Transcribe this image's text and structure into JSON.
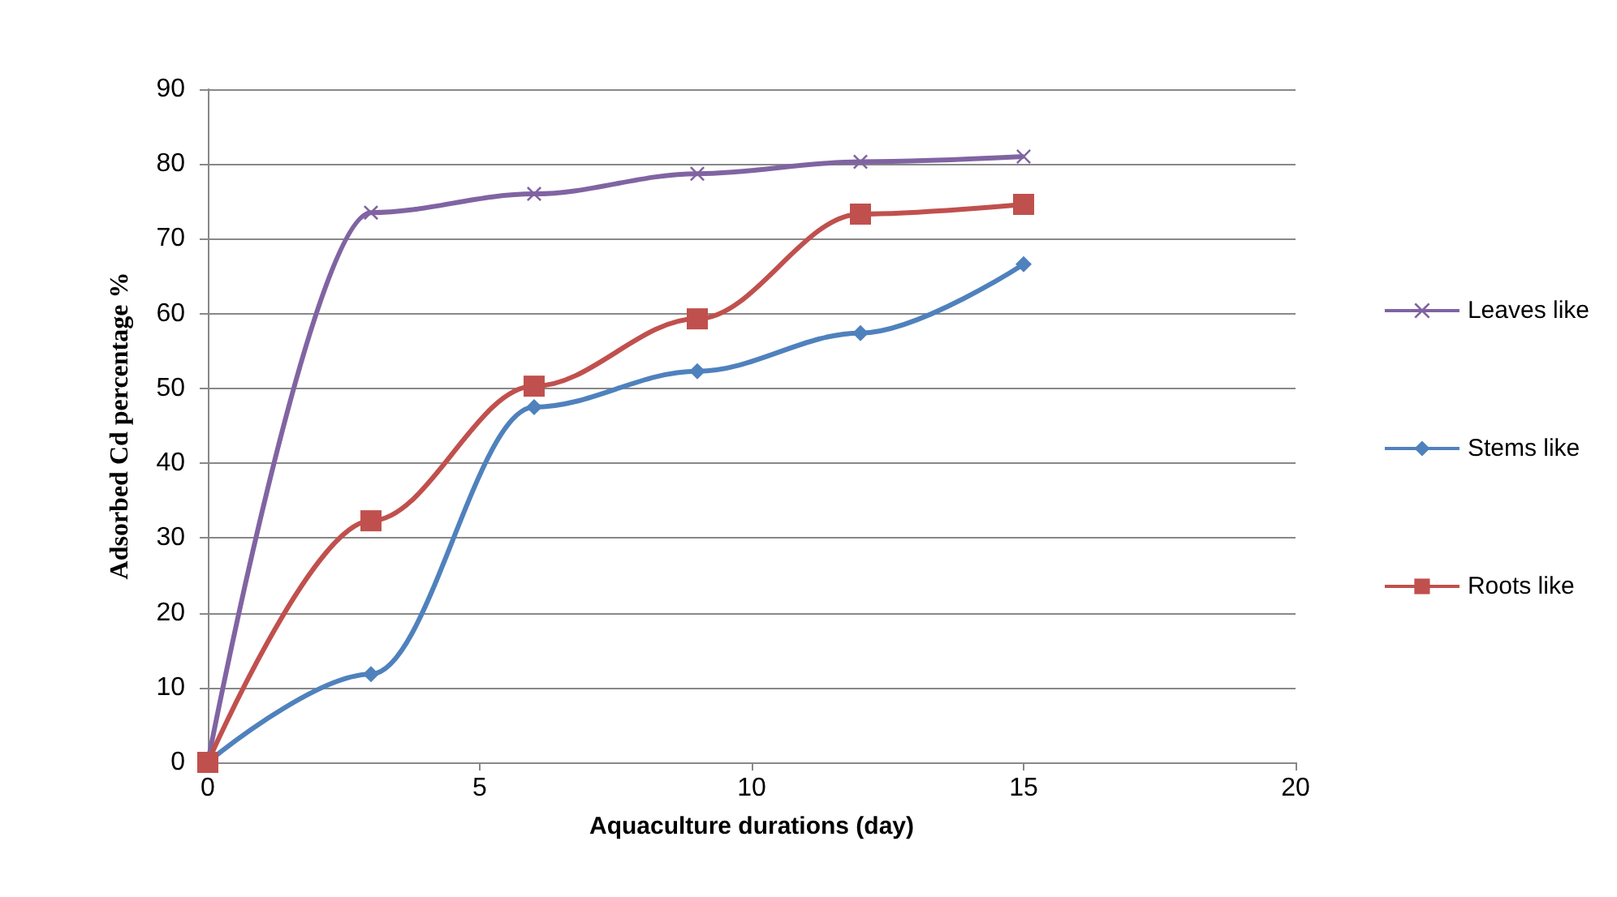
{
  "chart_data": {
    "type": "line",
    "xlabel": "Aquaculture durations (day)",
    "ylabel": "Adsorbed Cd percentage %",
    "x": [
      0,
      3,
      6,
      9,
      12,
      15
    ],
    "series": [
      {
        "name": "Leaves like",
        "color": "#8064a2",
        "marker": "cross",
        "values": [
          0,
          73.5,
          76,
          78.7,
          80.3,
          81
        ]
      },
      {
        "name": "Stems like",
        "color": "#4f81bd",
        "marker": "diamond",
        "values": [
          0,
          11.8,
          47.5,
          52.3,
          57.4,
          66.6
        ]
      },
      {
        "name": "Roots like",
        "color": "#c0504d",
        "marker": "square",
        "values": [
          0,
          32.3,
          50.3,
          59.3,
          73.3,
          74.6
        ]
      }
    ],
    "xlim": [
      0,
      20
    ],
    "xticks": [
      0,
      5,
      10,
      15,
      20
    ],
    "ylim": [
      0,
      90
    ],
    "yticks": [
      0,
      10,
      20,
      30,
      40,
      50,
      60,
      70,
      80,
      90
    ],
    "grid": "y",
    "legend": "right"
  }
}
